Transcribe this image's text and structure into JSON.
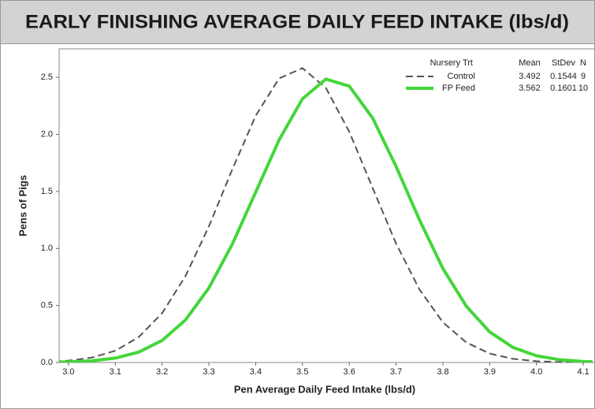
{
  "chart_data": {
    "type": "line",
    "title": "EARLY FINISHING AVERAGE DAILY FEED INTAKE (lbs/d)",
    "xlabel": "Pen Average Daily Feed Intake (lbs/d)",
    "ylabel": "Pens of Pigs",
    "legend_header": [
      "Nursery Trt",
      "Mean",
      "StDev",
      "N"
    ],
    "x": [
      2.97,
      3.0,
      3.05,
      3.1,
      3.15,
      3.2,
      3.25,
      3.3,
      3.35,
      3.4,
      3.45,
      3.5,
      3.55,
      3.6,
      3.65,
      3.7,
      3.75,
      3.8,
      3.85,
      3.9,
      3.95,
      4.0,
      4.05,
      4.1,
      4.12
    ],
    "series": [
      {
        "name": "Control",
        "color": "#555555",
        "dashed": true,
        "mean": 3.492,
        "stdev": 0.1544,
        "n": 9,
        "values": [
          0.0085,
          0.0161,
          0.0429,
          0.103,
          0.222,
          0.432,
          0.757,
          1.193,
          1.693,
          2.163,
          2.491,
          2.581,
          2.408,
          2.023,
          1.53,
          1.043,
          0.64,
          0.353,
          0.176,
          0.0788,
          0.0317,
          0.0115,
          0.0038,
          0.0011,
          0.0007
        ]
      },
      {
        "name": "FP Feed",
        "color": "#44d63a",
        "dashed": false,
        "mean": 3.562,
        "stdev": 0.1601,
        "n": 10,
        "values": [
          0.0027,
          0.0053,
          0.015,
          0.0388,
          0.091,
          0.193,
          0.373,
          0.653,
          1.037,
          1.493,
          1.951,
          2.312,
          2.485,
          2.423,
          2.143,
          1.719,
          1.251,
          0.825,
          0.494,
          0.268,
          0.132,
          0.059,
          0.0239,
          0.0088,
          0.0057
        ]
      }
    ],
    "xlim": [
      2.98,
      4.12
    ],
    "xticks": [
      {
        "value": 3,
        "label": "3.0"
      },
      3.1,
      3.2,
      3.3,
      3.4,
      3.5,
      3.6,
      3.7,
      3.8,
      3.9,
      {
        "value": 4,
        "label": "4.0"
      },
      4.1
    ],
    "ylim": [
      0,
      2.75
    ],
    "yticks": [
      {
        "value": 0,
        "label": "0.0"
      },
      0.5,
      {
        "value": 1,
        "label": "1.0"
      },
      1.5,
      {
        "value": 2,
        "label": "2.0"
      },
      2.5
    ]
  }
}
